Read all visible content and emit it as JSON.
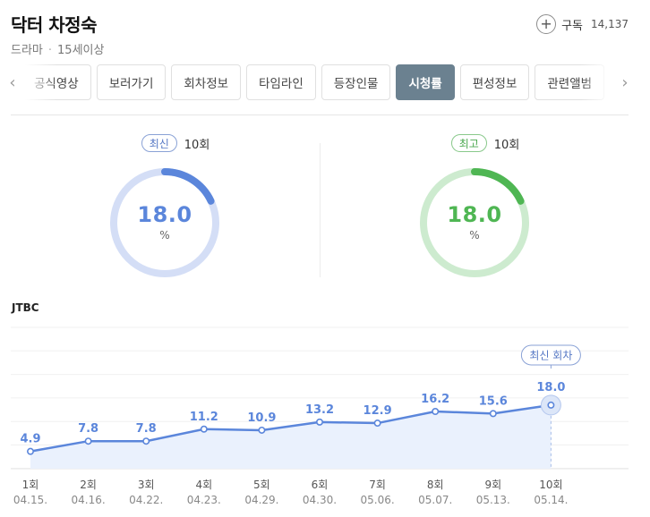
{
  "header": {
    "title": "닥터 차정숙",
    "genre": "드라마",
    "rating_age": "15세이상",
    "subscribe_label": "구독",
    "subscribe_count": "14,137"
  },
  "tabs": [
    {
      "label": "공식영상",
      "active": false
    },
    {
      "label": "보러가기",
      "active": false
    },
    {
      "label": "회차정보",
      "active": false
    },
    {
      "label": "타임라인",
      "active": false
    },
    {
      "label": "등장인물",
      "active": false
    },
    {
      "label": "시청률",
      "active": true
    },
    {
      "label": "편성정보",
      "active": false
    },
    {
      "label": "관련앨범",
      "active": false
    }
  ],
  "latest": {
    "badge": "최신",
    "episode": "10회",
    "value": "18.0",
    "unit": "%",
    "color": "#5b86db",
    "track_color": "#d4def6"
  },
  "best": {
    "badge": "최고",
    "episode": "10회",
    "value": "18.0",
    "unit": "%",
    "color": "#4fb653",
    "track_color": "#cdebcf"
  },
  "network": "JTBC",
  "chart_data": {
    "type": "area",
    "categories": [
      "1회",
      "2회",
      "3회",
      "4회",
      "5회",
      "6회",
      "7회",
      "8회",
      "9회",
      "10회"
    ],
    "dates": [
      "04.15.",
      "04.16.",
      "04.22.",
      "04.23.",
      "04.29.",
      "04.30.",
      "05.06.",
      "05.07.",
      "05.13.",
      "05.14."
    ],
    "values": [
      4.9,
      7.8,
      7.8,
      11.2,
      10.9,
      13.2,
      12.9,
      16.2,
      15.6,
      18.0
    ],
    "latest_label": "최신 회차",
    "line_color": "#5b86db",
    "fill_color": "#eaf1fd",
    "ylim": [
      0,
      40
    ]
  }
}
